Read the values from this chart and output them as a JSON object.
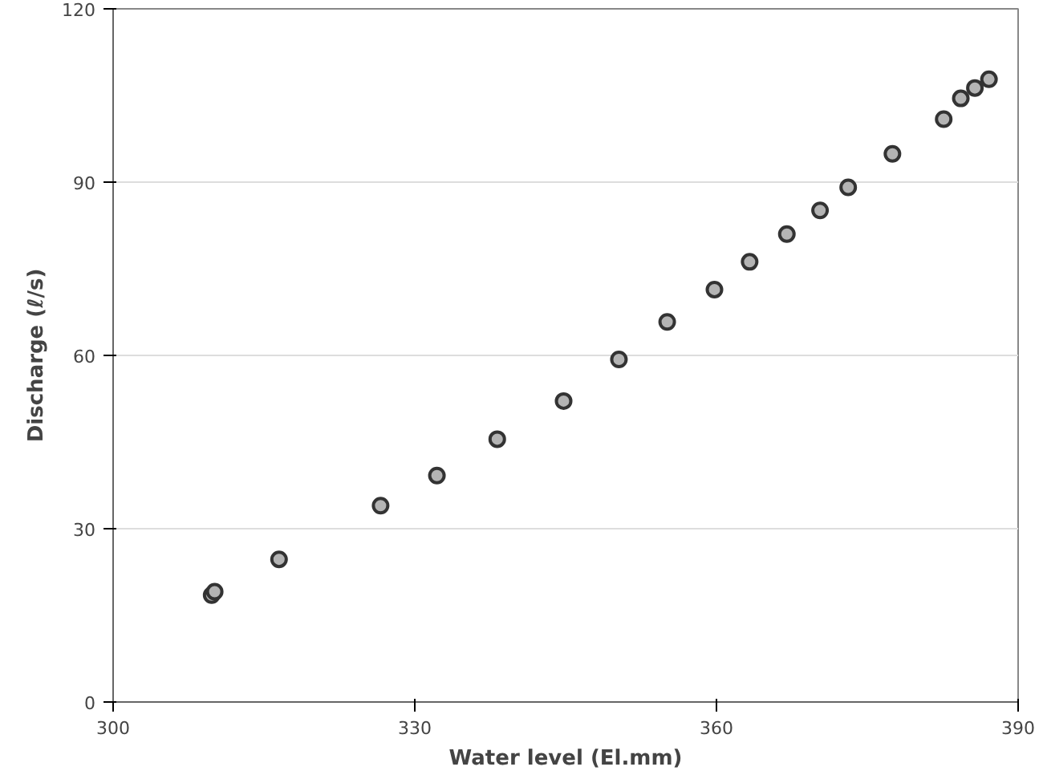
{
  "chart_data": {
    "type": "scatter",
    "xlabel": "Water level (El.mm)",
    "ylabel": "Discharge (ℓ/s)",
    "x": [
      309.8,
      310.1,
      316.5,
      326.6,
      332.2,
      338.2,
      344.8,
      350.3,
      355.1,
      359.8,
      363.3,
      367.0,
      370.3,
      373.1,
      377.5,
      382.6,
      384.3,
      385.7,
      387.1
    ],
    "series": [
      {
        "color": "#b4b4b4",
        "values": [
          18.5,
          19.1,
          24.7,
          34.0,
          39.2,
          45.5,
          52.1,
          59.3,
          65.8,
          71.4,
          76.2,
          81.0,
          85.1,
          89.1,
          94.9,
          100.9,
          104.5,
          106.3,
          107.8
        ]
      }
    ],
    "xlim": [
      300,
      390
    ],
    "ylim": [
      0,
      120
    ],
    "xticks": [
      300,
      330,
      360,
      390
    ],
    "yticks": [
      0,
      30,
      60,
      90,
      120
    ],
    "grid": "y",
    "marker": "circle"
  }
}
